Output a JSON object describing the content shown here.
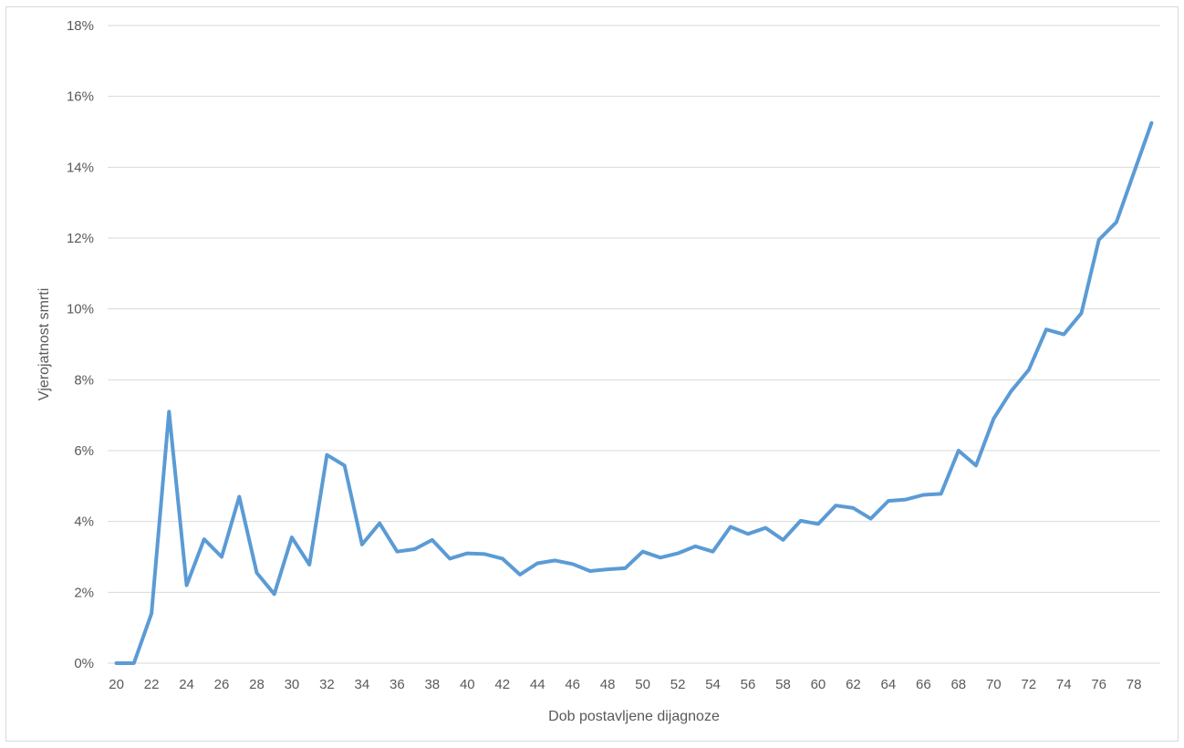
{
  "chart_data": {
    "type": "line",
    "title": "",
    "xlabel": "Dob postavljene dijagnoze",
    "ylabel": "Vjerojatnost smrti",
    "ylim": [
      0,
      18
    ],
    "yticks": [
      0,
      2,
      4,
      6,
      8,
      10,
      12,
      14,
      16,
      18
    ],
    "ytick_labels": [
      "0%",
      "2%",
      "4%",
      "6%",
      "8%",
      "10%",
      "12%",
      "14%",
      "16%",
      "18%"
    ],
    "xticks": [
      20,
      22,
      24,
      26,
      28,
      30,
      32,
      34,
      36,
      38,
      40,
      42,
      44,
      46,
      48,
      50,
      52,
      54,
      56,
      58,
      60,
      62,
      64,
      66,
      68,
      70,
      72,
      74,
      76,
      78
    ],
    "xtick_labels": [
      "20",
      "22",
      "24",
      "26",
      "28",
      "30",
      "32",
      "34",
      "36",
      "38",
      "40",
      "42",
      "44",
      "46",
      "48",
      "50",
      "52",
      "54",
      "56",
      "58",
      "60",
      "62",
      "64",
      "66",
      "68",
      "70",
      "72",
      "74",
      "76",
      "78"
    ],
    "grid": true,
    "legend": "none",
    "line_color": "#5b9bd5",
    "series": [
      {
        "x": [
          20,
          21,
          22,
          23,
          24,
          25,
          26,
          27,
          28,
          29,
          30,
          31,
          32,
          33,
          34,
          35,
          36,
          37,
          38,
          39,
          40,
          41,
          42,
          43,
          44,
          45,
          46,
          47,
          48,
          49,
          50,
          51,
          52,
          53,
          54,
          55,
          56,
          57,
          58,
          59,
          60,
          61,
          62,
          63,
          64,
          65,
          66,
          67,
          68,
          69,
          70,
          71,
          72,
          73,
          74,
          75,
          76,
          77,
          78,
          79
        ],
        "values": [
          0.0,
          0.0,
          1.4,
          7.1,
          2.2,
          3.5,
          3.0,
          4.7,
          2.55,
          1.95,
          3.55,
          2.78,
          5.88,
          5.58,
          3.35,
          3.95,
          3.15,
          3.22,
          3.48,
          2.95,
          3.1,
          3.08,
          2.95,
          2.5,
          2.82,
          2.9,
          2.8,
          2.6,
          2.65,
          2.68,
          3.15,
          2.98,
          3.1,
          3.3,
          3.15,
          3.85,
          3.65,
          3.82,
          3.48,
          4.02,
          3.93,
          4.45,
          4.38,
          4.08,
          4.58,
          4.62,
          4.75,
          4.78,
          6.0,
          5.58,
          6.9,
          7.68,
          8.28,
          9.42,
          9.28,
          9.88,
          11.95,
          12.45,
          13.85,
          15.25
        ]
      }
    ]
  }
}
